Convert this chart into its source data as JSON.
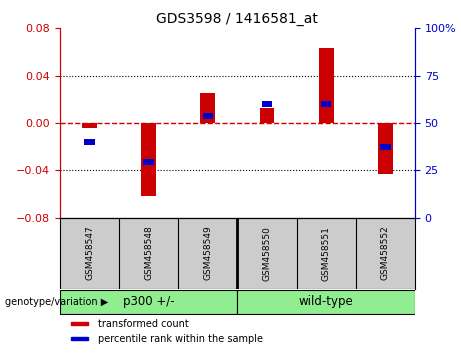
{
  "title": "GDS3598 / 1416581_at",
  "samples": [
    "GSM458547",
    "GSM458548",
    "GSM458549",
    "GSM458550",
    "GSM458551",
    "GSM458552"
  ],
  "red_values": [
    -0.004,
    -0.062,
    0.025,
    0.013,
    0.063,
    -0.043
  ],
  "blue_values": [
    -0.016,
    -0.033,
    0.006,
    0.016,
    0.016,
    -0.02
  ],
  "ylim": [
    -0.08,
    0.08
  ],
  "yticks_left": [
    -0.08,
    -0.04,
    0,
    0.04,
    0.08
  ],
  "yticks_right": [
    0,
    25,
    50,
    75,
    100
  ],
  "group_label_prefix": "genotype/variation",
  "red_color": "#CC0000",
  "blue_color": "#0000CC",
  "legend_red": "transformed count",
  "legend_blue": "percentile rank within the sample",
  "zero_line_color": "#CC0000",
  "background_sample_labels": "#CCCCCC",
  "bar_width": 0.25,
  "blue_square_size": 0.005,
  "blue_bar_width": 0.18
}
